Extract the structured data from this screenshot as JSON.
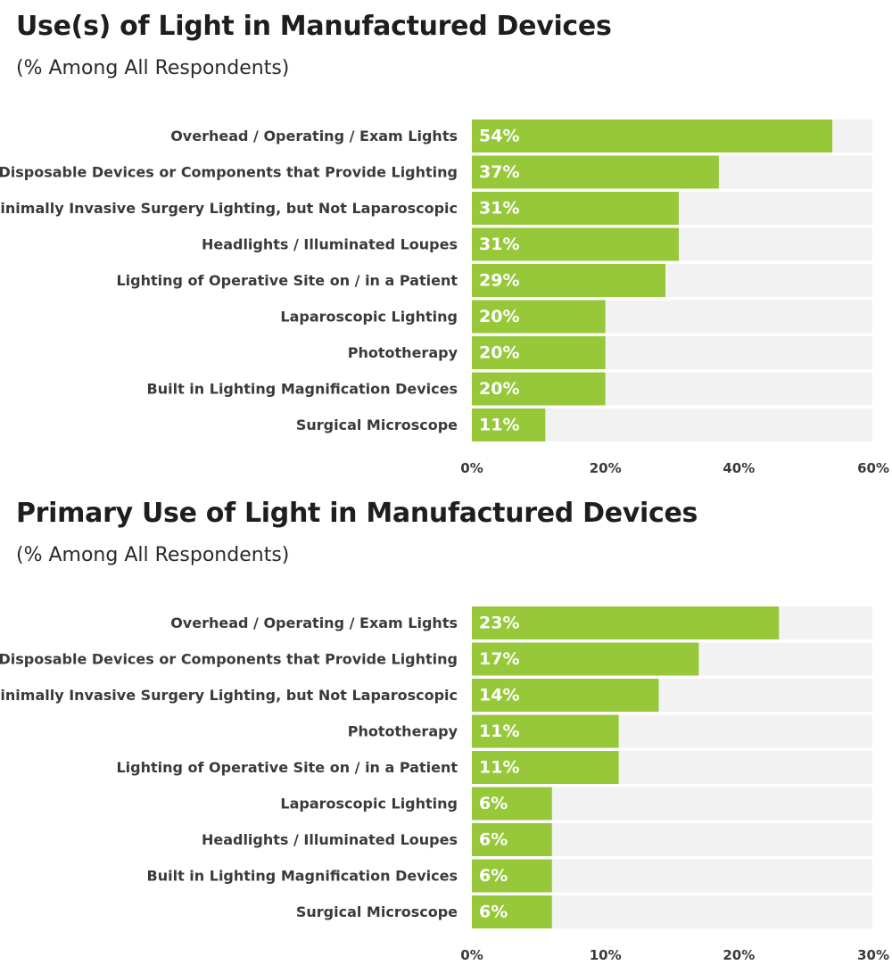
{
  "colors": {
    "bar": "#96c83a",
    "track": "#f2f2f2",
    "separator": "#ffffff"
  },
  "chart_data": [
    {
      "type": "bar",
      "orientation": "horizontal",
      "title": "Use(s) of Light in Manufactured Devices",
      "subtitle": "(% Among All Respondents)",
      "categories": [
        "Overhead / Operating / Exam Lights",
        "Disposable Devices or Components that Provide Lighting",
        "Minimally Invasive Surgery Lighting, but Not Laparoscopic",
        "Headlights / Illuminated Loupes",
        "Lighting of Operative Site on / in a Patient",
        "Laparoscopic Lighting",
        "Phototherapy",
        "Built in Lighting Magnification Devices",
        "Surgical Microscope"
      ],
      "values": [
        54,
        37,
        31,
        31,
        29,
        20,
        20,
        20,
        11
      ],
      "value_labels": [
        "54%",
        "37%",
        "31%",
        "31%",
        "29%",
        "20%",
        "20%",
        "20%",
        "11%"
      ],
      "xlim": [
        0,
        60
      ],
      "ticks": [
        0,
        20,
        40,
        60
      ],
      "tick_labels": [
        "0%",
        "20%",
        "40%",
        "60%"
      ],
      "grid": false
    },
    {
      "type": "bar",
      "orientation": "horizontal",
      "title": "Primary Use of Light in Manufactured Devices",
      "subtitle": "(% Among All Respondents)",
      "categories": [
        "Overhead / Operating / Exam Lights",
        "Disposable Devices or Components that Provide Lighting",
        "Minimally Invasive Surgery Lighting, but Not Laparoscopic",
        "Phototherapy",
        "Lighting of Operative Site on / in a Patient",
        "Laparoscopic Lighting",
        "Headlights / Illuminated Loupes",
        "Built in Lighting Magnification Devices",
        "Surgical Microscope"
      ],
      "values": [
        23,
        17,
        14,
        11,
        11,
        6,
        6,
        6,
        6
      ],
      "value_labels": [
        "23%",
        "17%",
        "14%",
        "11%",
        "11%",
        "6%",
        "6%",
        "6%",
        "6%"
      ],
      "xlim": [
        0,
        30
      ],
      "ticks": [
        0,
        10,
        20,
        30
      ],
      "tick_labels": [
        "0%",
        "10%",
        "20%",
        "30%"
      ],
      "grid": false
    }
  ]
}
